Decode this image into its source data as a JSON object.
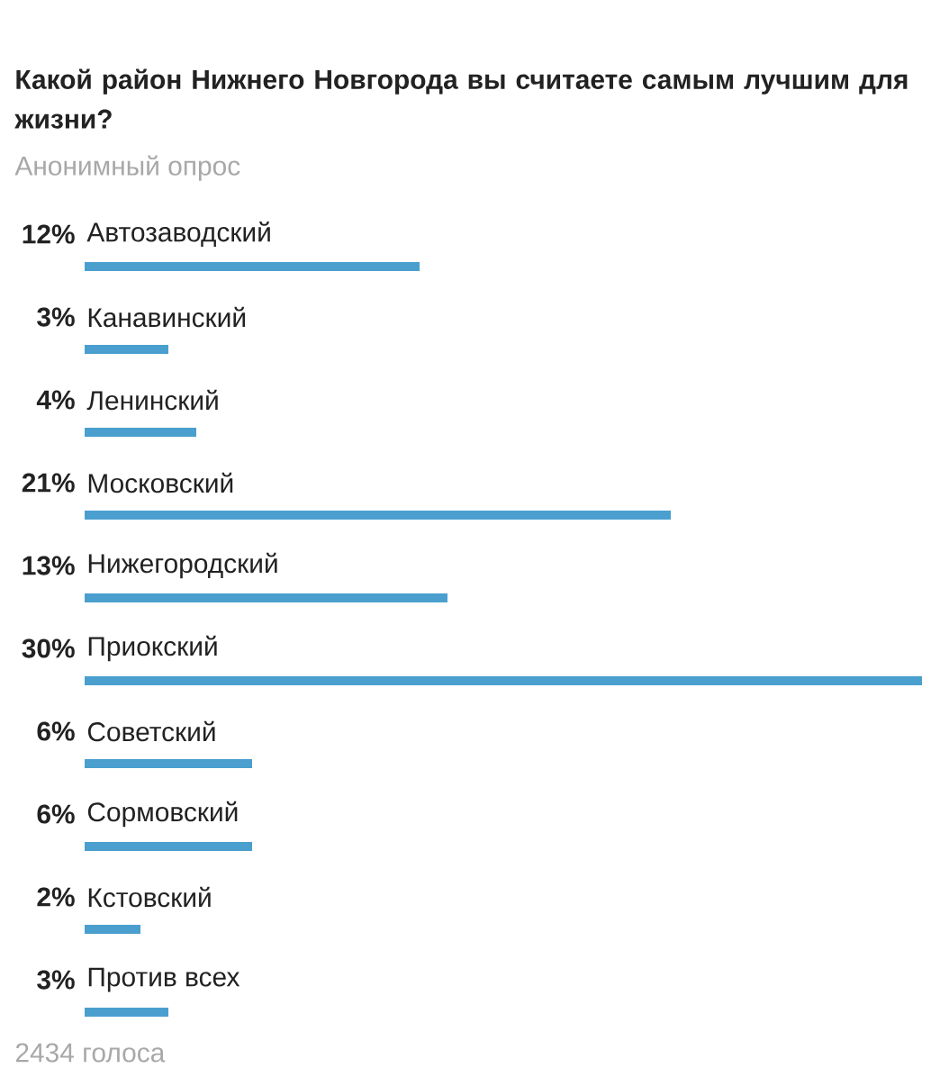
{
  "chart_data": {
    "type": "bar",
    "orientation": "horizontal",
    "title": "Какой район Нижнего Новгорода вы считаете самым лучшим для жизни?",
    "subtitle": "Анонимный опрос",
    "categories": [
      "Автозаводский",
      "Канавинский",
      "Ленинский",
      "Московский",
      "Нижегородский",
      "Приокский",
      "Советский",
      "Сормовский",
      "Кстовский",
      "Против всех"
    ],
    "values": [
      12,
      3,
      4,
      21,
      13,
      30,
      6,
      6,
      2,
      3
    ],
    "value_labels": [
      "12%",
      "3%",
      "4%",
      "21%",
      "13%",
      "30%",
      "6%",
      "6%",
      "2%",
      "3%"
    ],
    "color": "#4a9fcf",
    "annotations": [
      "2434 голоса"
    ]
  }
}
